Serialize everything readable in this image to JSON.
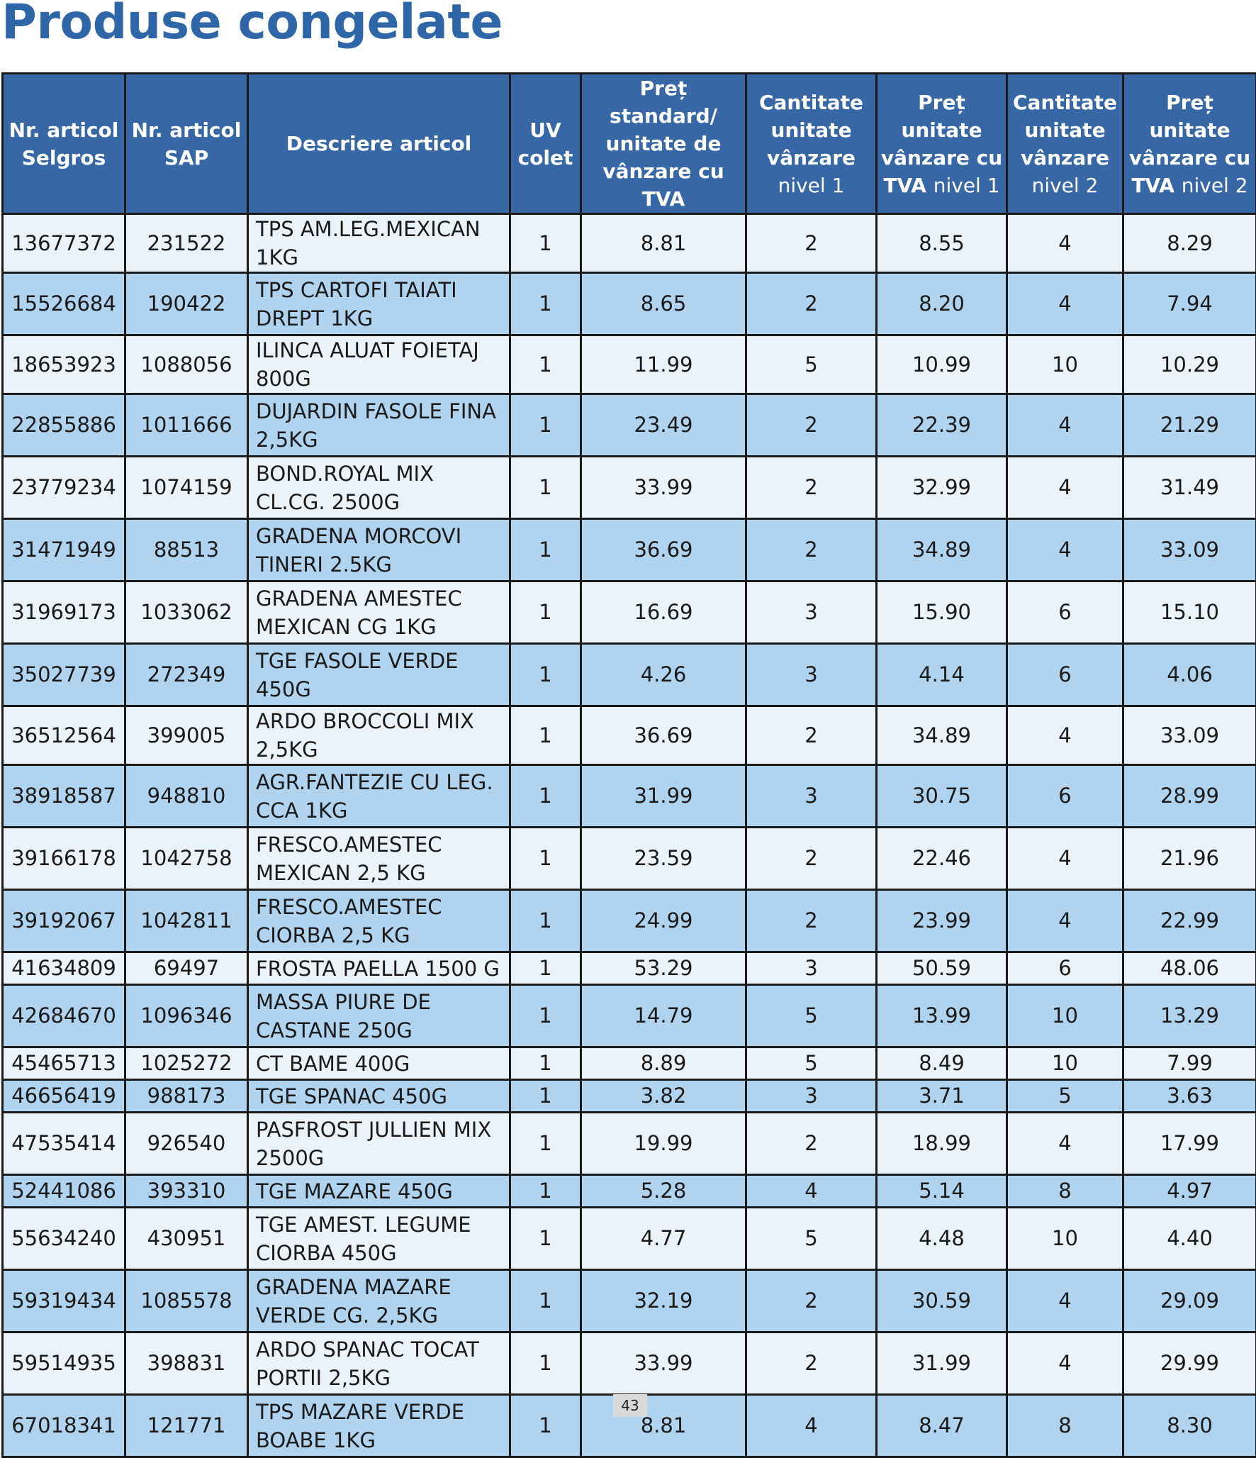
{
  "title": "Produse congelate",
  "page_number": "43",
  "colors": {
    "title": "#2f66a8",
    "header_bg": "#3767a4",
    "row_light": "#eaf2fa",
    "row_dark": "#b0d3ef"
  },
  "table": {
    "headers": [
      {
        "main": "Nr. articol Selgros",
        "suffix": ""
      },
      {
        "main": "Nr. articol SAP",
        "suffix": ""
      },
      {
        "main": "Descriere articol",
        "suffix": ""
      },
      {
        "main": "UV colet",
        "suffix": ""
      },
      {
        "main": "Preț standard/ unitate de vânzare cu TVA",
        "suffix": ""
      },
      {
        "main": "Cantitate unitate vânzare",
        "suffix": "nivel 1"
      },
      {
        "main": "Preț unitate vânzare cu TVA",
        "suffix": "nivel 1"
      },
      {
        "main": "Cantitate unitate vânzare",
        "suffix": "nivel 2"
      },
      {
        "main": "Preț unitate vânzare cu TVA",
        "suffix": "nivel 2"
      }
    ],
    "rows": [
      [
        "13677372",
        "231522",
        "TPS AM.LEG.MEXICAN 1KG",
        "1",
        "8.81",
        "2",
        "8.55",
        "4",
        "8.29"
      ],
      [
        "15526684",
        "190422",
        "TPS CARTOFI TAIATI DREPT 1KG",
        "1",
        "8.65",
        "2",
        "8.20",
        "4",
        "7.94"
      ],
      [
        "18653923",
        "1088056",
        "ILINCA ALUAT FOIETAJ 800G",
        "1",
        "11.99",
        "5",
        "10.99",
        "10",
        "10.29"
      ],
      [
        "22855886",
        "1011666",
        "DUJARDIN FASOLE FINA 2,5KG",
        "1",
        "23.49",
        "2",
        "22.39",
        "4",
        "21.29"
      ],
      [
        "23779234",
        "1074159",
        "BOND.ROYAL MIX CL.CG. 2500G",
        "1",
        "33.99",
        "2",
        "32.99",
        "4",
        "31.49"
      ],
      [
        "31471949",
        "88513",
        "GRADENA MORCOVI TINERI 2.5KG",
        "1",
        "36.69",
        "2",
        "34.89",
        "4",
        "33.09"
      ],
      [
        "31969173",
        "1033062",
        "GRADENA AMESTEC MEXICAN CG 1KG",
        "1",
        "16.69",
        "3",
        "15.90",
        "6",
        "15.10"
      ],
      [
        "35027739",
        "272349",
        "TGE FASOLE VERDE 450G",
        "1",
        "4.26",
        "3",
        "4.14",
        "6",
        "4.06"
      ],
      [
        "36512564",
        "399005",
        "ARDO BROCCOLI MIX 2,5KG",
        "1",
        "36.69",
        "2",
        "34.89",
        "4",
        "33.09"
      ],
      [
        "38918587",
        "948810",
        "AGR.FANTEZIE CU LEG. CCA 1KG",
        "1",
        "31.99",
        "3",
        "30.75",
        "6",
        "28.99"
      ],
      [
        "39166178",
        "1042758",
        "FRESCO.AMESTEC MEXICAN 2,5 KG",
        "1",
        "23.59",
        "2",
        "22.46",
        "4",
        "21.96"
      ],
      [
        "39192067",
        "1042811",
        "FRESCO.AMESTEC CIORBA 2,5 KG",
        "1",
        "24.99",
        "2",
        "23.99",
        "4",
        "22.99"
      ],
      [
        "41634809",
        "69497",
        "FROSTA PAELLA 1500 G",
        "1",
        "53.29",
        "3",
        "50.59",
        "6",
        "48.06"
      ],
      [
        "42684670",
        "1096346",
        "MASSA PIURE DE CASTANE 250G",
        "1",
        "14.79",
        "5",
        "13.99",
        "10",
        "13.29"
      ],
      [
        "45465713",
        "1025272",
        "CT BAME 400G",
        "1",
        "8.89",
        "5",
        "8.49",
        "10",
        "7.99"
      ],
      [
        "46656419",
        "988173",
        "TGE SPANAC 450G",
        "1",
        "3.82",
        "3",
        "3.71",
        "5",
        "3.63"
      ],
      [
        "47535414",
        "926540",
        "PASFROST JULLIEN MIX 2500G",
        "1",
        "19.99",
        "2",
        "18.99",
        "4",
        "17.99"
      ],
      [
        "52441086",
        "393310",
        "TGE MAZARE 450G",
        "1",
        "5.28",
        "4",
        "5.14",
        "8",
        "4.97"
      ],
      [
        "55634240",
        "430951",
        "TGE AMEST. LEGUME CIORBA 450G",
        "1",
        "4.77",
        "5",
        "4.48",
        "10",
        "4.40"
      ],
      [
        "59319434",
        "1085578",
        "GRADENA MAZARE VERDE CG. 2,5KG",
        "1",
        "32.19",
        "2",
        "30.59",
        "4",
        "29.09"
      ],
      [
        "59514935",
        "398831",
        "ARDO SPANAC TOCAT PORTII 2,5KG",
        "1",
        "33.99",
        "2",
        "31.99",
        "4",
        "29.99"
      ],
      [
        "67018341",
        "121771",
        "TPS MAZARE VERDE BOABE 1KG",
        "1",
        "8.81",
        "4",
        "8.47",
        "8",
        "8.30"
      ]
    ]
  }
}
